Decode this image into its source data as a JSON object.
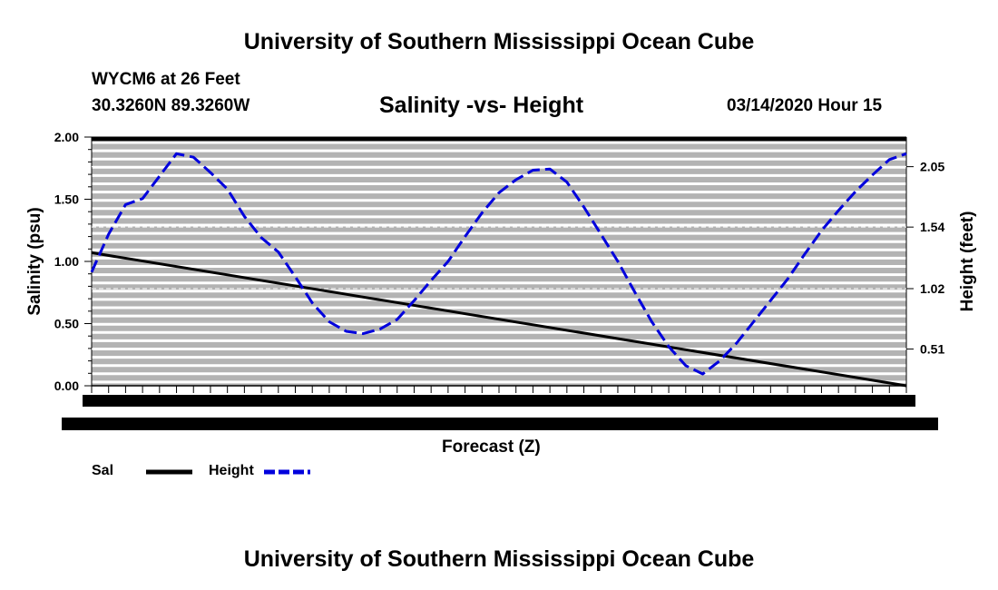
{
  "header": {
    "top_title": "University of Southern Mississippi Ocean Cube",
    "station": "WYCM6 at 26 Feet",
    "coords": "30.3260N 89.3260W",
    "datetime": "03/14/2020 Hour 15"
  },
  "footer": {
    "bottom_title": "University of Southern Mississippi Ocean Cube"
  },
  "legend": {
    "sal_label": "Sal",
    "height_label": "Height"
  },
  "colors": {
    "plot_background": "#b3b3b3",
    "gridline": "#ffffff",
    "salinity_line": "#000000",
    "height_line": "#0000dd"
  },
  "chart_data": {
    "type": "line",
    "title": "Salinity -vs- Height",
    "xlabel": "Forecast (Z)",
    "ylabel": "Salinity (psu)",
    "y2label": "Height (feet)",
    "ylim": [
      0,
      2.0
    ],
    "y2lim": [
      0.2,
      2.3
    ],
    "x_range": [
      0,
      48
    ],
    "grid": true,
    "legend_position": "bottom-left",
    "y_ticks": [
      "2.00",
      "1.50",
      "1.00",
      "0.50",
      "0.00"
    ],
    "y2_ticks": [
      "2.05",
      "1.54",
      "1.02",
      "0.51"
    ],
    "series": [
      {
        "name": "Sal",
        "axis": "left",
        "style": "solid",
        "x": [
          0,
          48
        ],
        "values": [
          1.07,
          0.0
        ]
      },
      {
        "name": "Height",
        "axis": "right",
        "style": "dashed",
        "x": [
          0,
          1,
          2,
          3,
          4,
          5,
          6,
          7,
          8,
          9,
          10,
          11,
          12,
          13,
          14,
          15,
          16,
          17,
          18,
          19,
          20,
          21,
          22,
          23,
          24,
          25,
          26,
          27,
          28,
          29,
          30,
          31,
          32,
          33,
          34,
          35,
          36,
          37,
          38,
          39,
          40,
          41,
          42,
          43,
          44,
          45,
          46,
          47,
          48
        ],
        "values": [
          1.16,
          1.48,
          1.73,
          1.78,
          1.97,
          2.16,
          2.13,
          2.0,
          1.86,
          1.63,
          1.45,
          1.33,
          1.12,
          0.9,
          0.74,
          0.66,
          0.64,
          0.68,
          0.76,
          0.92,
          1.09,
          1.25,
          1.46,
          1.66,
          1.83,
          1.94,
          2.02,
          2.03,
          1.92,
          1.71,
          1.48,
          1.25,
          0.99,
          0.74,
          0.53,
          0.37,
          0.3,
          0.41,
          0.56,
          0.74,
          0.92,
          1.1,
          1.31,
          1.51,
          1.68,
          1.84,
          1.98,
          2.11,
          2.16
        ]
      }
    ]
  }
}
